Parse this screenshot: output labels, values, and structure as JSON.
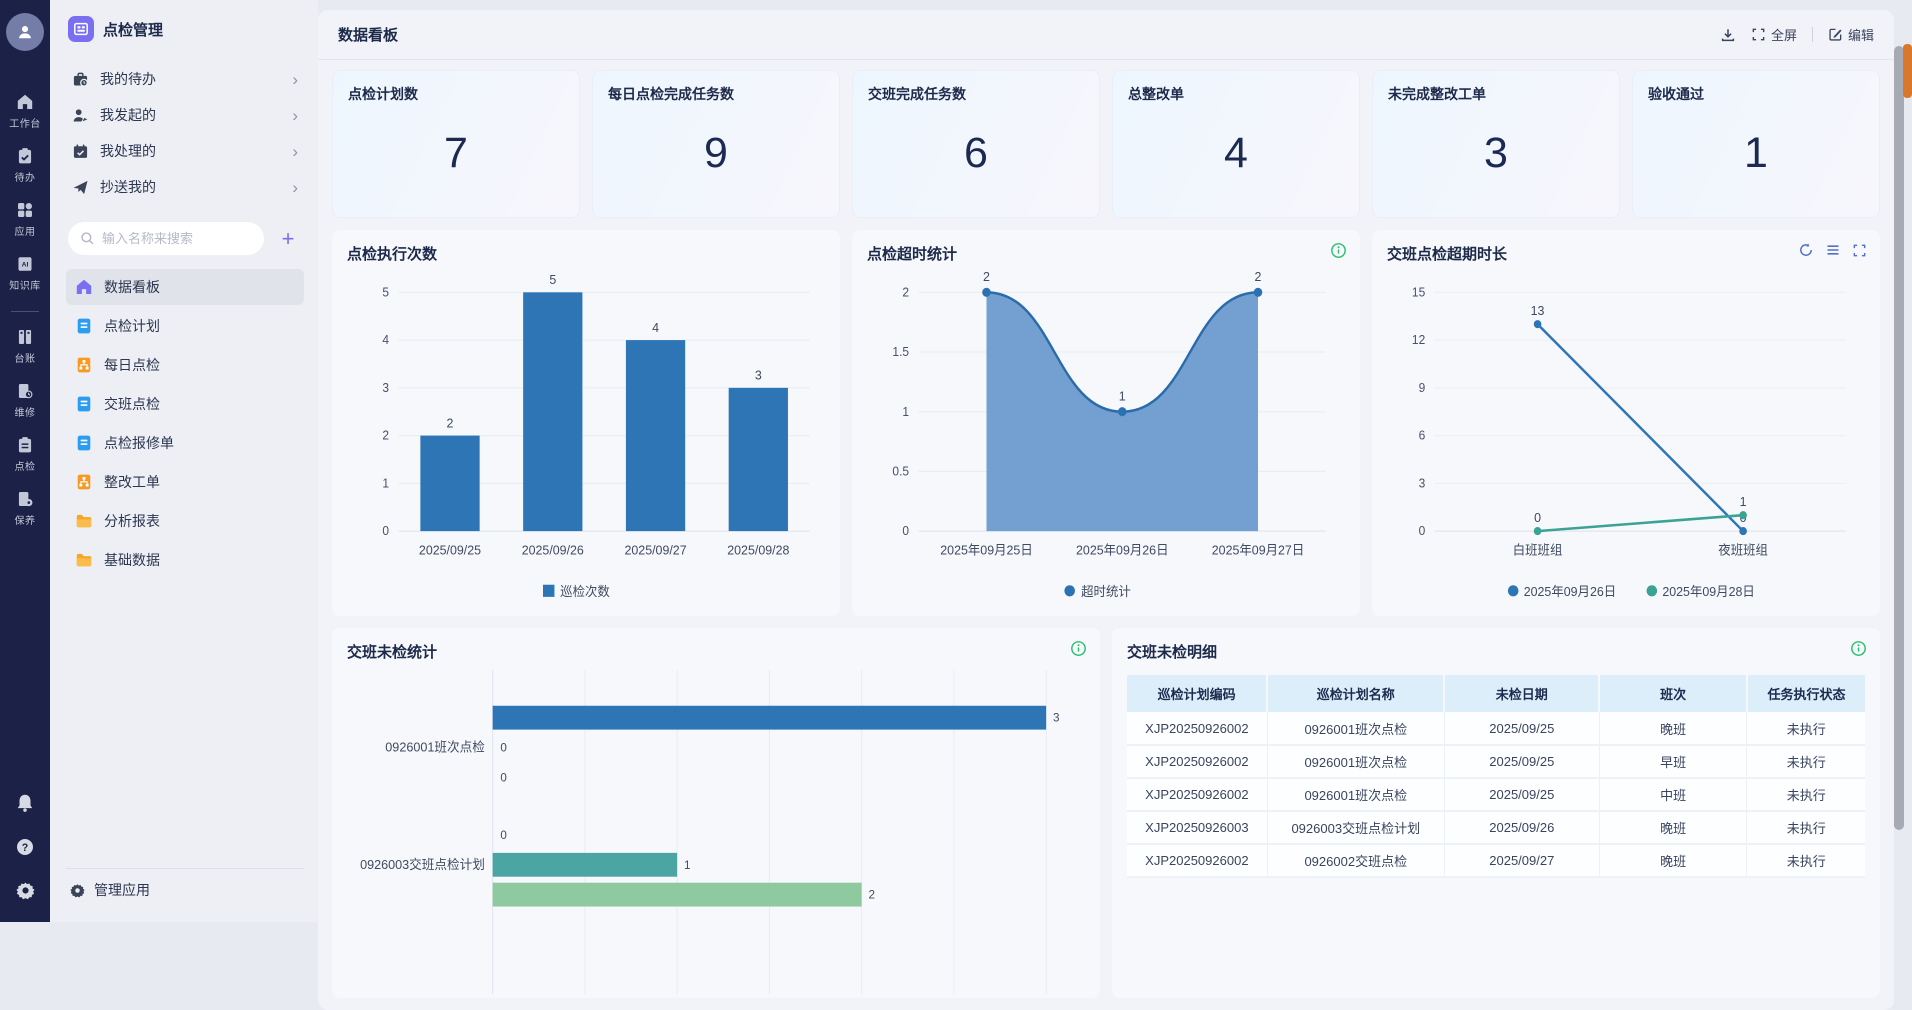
{
  "rail": {
    "items": [
      {
        "icon": "workbench-icon",
        "label": "工作台"
      },
      {
        "icon": "todo-icon",
        "label": "待办"
      },
      {
        "icon": "apps-icon",
        "label": "应用"
      },
      {
        "icon": "knowledge-icon",
        "label": "知识库"
      },
      {
        "icon": "ledger-icon",
        "label": "台账"
      },
      {
        "icon": "repair-icon",
        "label": "维修"
      },
      {
        "icon": "inspect-icon",
        "label": "点检"
      },
      {
        "icon": "maintain-icon",
        "label": "保养"
      }
    ]
  },
  "sidebar": {
    "app_title": "点检管理",
    "groups": [
      {
        "icon": "my-todo-icon",
        "label": "我的待办"
      },
      {
        "icon": "initiated-icon",
        "label": "我发起的"
      },
      {
        "icon": "handled-icon",
        "label": "我处理的"
      },
      {
        "icon": "cc-icon",
        "label": "抄送我的"
      }
    ],
    "search_placeholder": "输入名称来搜索",
    "plus_label": "+",
    "items": [
      {
        "icon": "dashboard-icon",
        "label": "数据看板",
        "active": true
      },
      {
        "icon": "doc-icon",
        "label": "点检计划"
      },
      {
        "icon": "org-icon",
        "label": "每日点检"
      },
      {
        "icon": "doc-icon",
        "label": "交班点检"
      },
      {
        "icon": "doc-icon",
        "label": "点检报修单"
      },
      {
        "icon": "org-icon",
        "label": "整改工单"
      },
      {
        "icon": "folder-icon",
        "label": "分析报表"
      },
      {
        "icon": "folder-icon",
        "label": "基础数据"
      }
    ],
    "footer_label": "管理应用"
  },
  "header": {
    "title": "数据看板",
    "fullscreen_label": "全屏",
    "edit_label": "编辑"
  },
  "kpis": [
    {
      "label": "点检计划数",
      "value": "7"
    },
    {
      "label": "每日点检完成任务数",
      "value": "9"
    },
    {
      "label": "交班完成任务数",
      "value": "6"
    },
    {
      "label": "总整改单",
      "value": "4"
    },
    {
      "label": "未完成整改工单",
      "value": "3"
    },
    {
      "label": "验收通过",
      "value": "1"
    }
  ],
  "chart_data": [
    {
      "type": "bar",
      "title": "点检执行次数",
      "categories": [
        "2025/09/25",
        "2025/09/26",
        "2025/09/27",
        "2025/09/28"
      ],
      "values": [
        2,
        5,
        4,
        3
      ],
      "yticks": [
        0,
        1,
        2,
        3,
        4,
        5
      ],
      "ylim": [
        0,
        5
      ],
      "legend": "巡检次数",
      "color": "#2e75b6",
      "grid": true,
      "legend_position": "bottom"
    },
    {
      "type": "area",
      "title": "点检超时统计",
      "categories": [
        "2025年09月25日",
        "2025年09月26日",
        "2025年09月27日"
      ],
      "values": [
        2,
        1,
        2
      ],
      "yticks": [
        0,
        0.5,
        1,
        1.5,
        2
      ],
      "ylim": [
        0,
        2
      ],
      "legend": "超时统计",
      "color": "#2a6cab",
      "fill": "#6899cc",
      "point_color": "#2b72b2",
      "grid": true,
      "legend_position": "bottom"
    },
    {
      "type": "line",
      "title": "交班点检超期时长",
      "categories": [
        "白班班组",
        "夜班班组"
      ],
      "series": [
        {
          "name": "2025年09月26日",
          "values": [
            13,
            0
          ],
          "color": "#2e75b6"
        },
        {
          "name": "2025年09月28日",
          "values": [
            0,
            1
          ],
          "color": "#3aa393"
        }
      ],
      "yticks": [
        0,
        3,
        6,
        9,
        12,
        15
      ],
      "ylim": [
        0,
        15
      ],
      "grid": true,
      "legend_position": "bottom"
    },
    {
      "type": "hbar",
      "title": "交班未检统计",
      "categories": [
        "0926001班次点检",
        "0926003交班点检计划"
      ],
      "series": [
        {
          "color": "#2e75b6",
          "values": [
            3,
            0
          ]
        },
        {
          "color": "#4aa5a3",
          "values": [
            0,
            1
          ]
        },
        {
          "color": "#8fc9a0",
          "values": [
            0,
            2
          ]
        }
      ],
      "xlim": [
        0,
        3
      ],
      "xticks": [
        0,
        0.5,
        1,
        1.5,
        2,
        2.5,
        3
      ],
      "grid": true
    }
  ],
  "table": {
    "title": "交班未检明细",
    "columns": [
      "巡检计划编码",
      "巡检计划名称",
      "未检日期",
      "班次",
      "任务执行状态"
    ],
    "rows": [
      [
        "XJP20250926002",
        "0926001班次点检",
        "2025/09/25",
        "晚班",
        "未执行"
      ],
      [
        "XJP20250926002",
        "0926001班次点检",
        "2025/09/25",
        "早班",
        "未执行"
      ],
      [
        "XJP20250926002",
        "0926001班次点检",
        "2025/09/25",
        "中班",
        "未执行"
      ],
      [
        "XJP20250926003",
        "0926003交班点检计划",
        "2025/09/26",
        "晚班",
        "未执行"
      ],
      [
        "XJP20250926002",
        "0926002交班点检",
        "2025/09/27",
        "晚班",
        "未执行"
      ]
    ]
  }
}
